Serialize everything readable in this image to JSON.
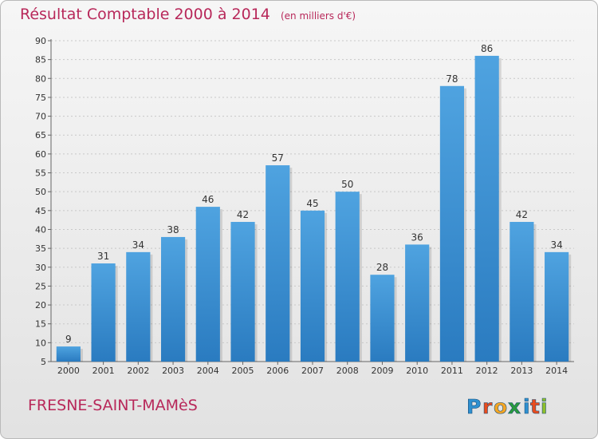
{
  "chart_data": {
    "type": "bar",
    "title": "Résultat Comptable 2000 à 2014",
    "subtitle": "(en milliers d'€)",
    "categories": [
      "2000",
      "2001",
      "2002",
      "2003",
      "2004",
      "2005",
      "2006",
      "2007",
      "2008",
      "2009",
      "2010",
      "2011",
      "2012",
      "2013",
      "2014"
    ],
    "values": [
      9,
      31,
      34,
      38,
      46,
      42,
      57,
      45,
      50,
      28,
      36,
      78,
      86,
      42,
      34
    ],
    "ylim": [
      5,
      90
    ],
    "yticks": [
      5,
      10,
      15,
      20,
      25,
      30,
      35,
      40,
      45,
      50,
      55,
      60,
      65,
      70,
      75,
      80,
      85,
      90
    ],
    "grid": true,
    "bar_color": "#4fa3e0",
    "bar_color_dark": "#2a7bc0"
  },
  "footer": {
    "commune": "FRESNE-SAINT-MAMèS",
    "logo_letters": [
      "P",
      "r",
      "o",
      "x",
      "i",
      "t",
      "i"
    ],
    "logo_colors": [
      "#2e90d0",
      "#e84c1e",
      "#f5a623",
      "#2a9a3c",
      "#2e90d0",
      "#e84c1e",
      "#8fbf2a"
    ]
  }
}
